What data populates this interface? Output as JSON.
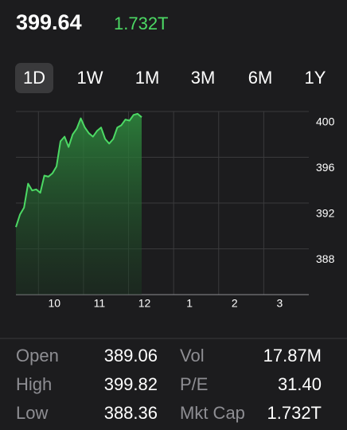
{
  "header": {
    "price": "399.64",
    "market_cap": "1.732T"
  },
  "tabs": [
    "1D",
    "1W",
    "1M",
    "3M",
    "6M",
    "1Y"
  ],
  "chart_data": {
    "type": "line",
    "x": [
      9.5,
      9.59,
      9.68,
      9.77,
      9.86,
      9.95,
      10.04,
      10.13,
      10.22,
      10.31,
      10.4,
      10.49,
      10.58,
      10.67,
      10.76,
      10.85,
      10.94,
      11.03,
      11.12,
      11.21,
      11.3,
      11.39,
      11.48,
      11.57,
      11.66,
      11.75,
      11.84,
      11.93,
      12.02,
      12.11,
      12.2,
      12.29
    ],
    "series": [
      {
        "color": "#4cd964",
        "values": [
          389.9,
          391.0,
          391.6,
          393.7,
          393.1,
          393.2,
          392.9,
          394.4,
          394.3,
          394.6,
          395.2,
          397.4,
          397.8,
          396.9,
          398.0,
          398.5,
          399.4,
          398.6,
          398.1,
          397.8,
          398.3,
          398.6,
          397.6,
          397.2,
          397.6,
          398.6,
          398.8,
          399.3,
          399.2,
          399.7,
          399.8,
          399.5
        ]
      }
    ],
    "xlim": [
      9.5,
      16
    ],
    "xticks": [
      10,
      11,
      12,
      {
        "value": 13,
        "label": "1"
      },
      {
        "value": 14,
        "label": "2"
      },
      {
        "value": 15,
        "label": "3"
      }
    ],
    "ylim": [
      384,
      400
    ],
    "yticks": [
      388,
      392,
      396,
      400
    ],
    "grid": true
  },
  "stats": [
    {
      "label": "Open",
      "value": "389.06"
    },
    {
      "label": "High",
      "value": "399.82"
    },
    {
      "label": "Low",
      "value": "388.36"
    },
    {
      "label": "Vol",
      "value": "17.87M"
    },
    {
      "label": "P/E",
      "value": "31.40"
    },
    {
      "label": "Mkt Cap",
      "value": "1.732T"
    }
  ]
}
